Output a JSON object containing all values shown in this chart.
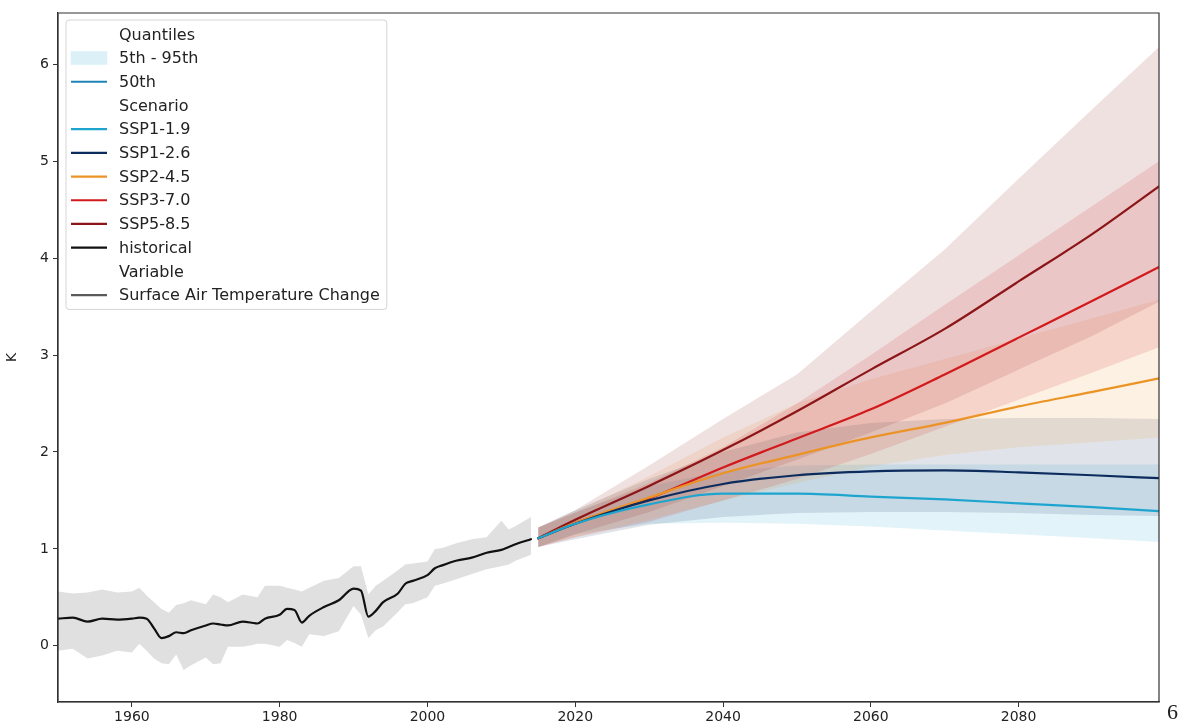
{
  "chart_data": {
    "type": "line",
    "ylabel": "K",
    "xlim": [
      1950,
      2099
    ],
    "xticks": [
      1960,
      1980,
      2000,
      2020,
      2040,
      2060,
      2080
    ],
    "ylim": [
      -0.58,
      6.53
    ],
    "yticks": [
      0,
      1,
      2,
      3,
      4,
      5,
      6
    ],
    "legend": "top left",
    "annotations": [
      "6"
    ],
    "series": [
      {
        "name": "Quantiles"
      },
      {
        "name": "5th - 95th",
        "type": "area",
        "color": "#dcf0f8"
      },
      {
        "name": "50th",
        "color": "#1f84b8"
      },
      {
        "name": "Scenario"
      },
      {
        "name": "SSP1-1.9",
        "color": "#1ea5cf",
        "x": [
          2015,
          2020,
          2030,
          2040,
          2050,
          2060,
          2070,
          2080,
          2090,
          2099
        ],
        "values": [
          1.11,
          1.26,
          1.46,
          1.57,
          1.57,
          1.54,
          1.51,
          1.47,
          1.43,
          1.39
        ],
        "lower": [
          1.02,
          1.15,
          1.26,
          1.27,
          1.26,
          1.23,
          1.19,
          1.15,
          1.11,
          1.07
        ],
        "upper": [
          1.22,
          1.38,
          1.65,
          1.8,
          1.86,
          1.87,
          1.87,
          1.87,
          1.87,
          1.87
        ]
      },
      {
        "name": "SSP1-2.6",
        "color": "#0d2c5e",
        "x": [
          2015,
          2020,
          2030,
          2040,
          2050,
          2060,
          2070,
          2080,
          2090,
          2099
        ],
        "values": [
          1.11,
          1.26,
          1.5,
          1.67,
          1.76,
          1.8,
          1.81,
          1.79,
          1.76,
          1.73
        ],
        "lower": [
          1.02,
          1.1,
          1.25,
          1.33,
          1.37,
          1.38,
          1.38,
          1.37,
          1.35,
          1.34
        ],
        "upper": [
          1.22,
          1.4,
          1.72,
          2.0,
          2.2,
          2.3,
          2.34,
          2.35,
          2.35,
          2.34
        ]
      },
      {
        "name": "SSP2-4.5",
        "color": "#ec9326",
        "x": [
          2015,
          2020,
          2030,
          2040,
          2050,
          2060,
          2070,
          2080,
          2090,
          2099
        ],
        "values": [
          1.11,
          1.27,
          1.53,
          1.78,
          1.97,
          2.15,
          2.3,
          2.47,
          2.62,
          2.76
        ],
        "lower": [
          1.02,
          1.12,
          1.3,
          1.5,
          1.68,
          1.85,
          1.97,
          2.05,
          2.1,
          2.15
        ],
        "upper": [
          1.22,
          1.38,
          1.75,
          2.15,
          2.5,
          2.75,
          2.96,
          3.17,
          3.38,
          3.57
        ]
      },
      {
        "name": "SSP3-7.0",
        "color": "#d2191c",
        "x": [
          2015,
          2020,
          2030,
          2040,
          2050,
          2060,
          2070,
          2080,
          2090,
          2099
        ],
        "values": [
          1.11,
          1.27,
          1.52,
          1.84,
          2.14,
          2.44,
          2.8,
          3.18,
          3.56,
          3.91
        ],
        "lower": [
          1.02,
          1.12,
          1.28,
          1.5,
          1.72,
          1.98,
          2.26,
          2.54,
          2.82,
          3.08
        ],
        "upper": [
          1.22,
          1.37,
          1.68,
          2.05,
          2.5,
          3.0,
          3.52,
          4.03,
          4.54,
          5.0
        ]
      },
      {
        "name": "SSP5-8.5",
        "color": "#8c1517",
        "x": [
          2015,
          2020,
          2030,
          2040,
          2050,
          2060,
          2070,
          2080,
          2090,
          2099
        ],
        "values": [
          1.11,
          1.3,
          1.65,
          2.02,
          2.42,
          2.85,
          3.27,
          3.76,
          4.25,
          4.74
        ],
        "lower": [
          1.02,
          1.15,
          1.38,
          1.65,
          1.92,
          2.2,
          2.5,
          2.85,
          3.2,
          3.55
        ],
        "upper": [
          1.22,
          1.4,
          1.86,
          2.34,
          2.8,
          3.45,
          4.09,
          4.82,
          5.54,
          6.18
        ]
      },
      {
        "name": "historical",
        "color": "#111111",
        "x": [
          1950,
          1952,
          1954,
          1956,
          1958,
          1960,
          1961,
          1962,
          1963,
          1964,
          1965,
          1966,
          1967,
          1968,
          1970,
          1971,
          1972,
          1973,
          1975,
          1977,
          1978,
          1980,
          1981,
          1982,
          1983,
          1984,
          1986,
          1988,
          1990,
          1991,
          1992,
          1993,
          1994,
          1996,
          1997,
          1998,
          2000,
          2001,
          2002,
          2004,
          2006,
          2008,
          2010,
          2011,
          2012,
          2014
        ],
        "values": [
          0.28,
          0.29,
          0.25,
          0.28,
          0.27,
          0.28,
          0.29,
          0.28,
          0.18,
          0.08,
          0.1,
          0.14,
          0.13,
          0.16,
          0.21,
          0.23,
          0.22,
          0.21,
          0.25,
          0.23,
          0.28,
          0.32,
          0.38,
          0.37,
          0.24,
          0.31,
          0.4,
          0.47,
          0.59,
          0.57,
          0.3,
          0.36,
          0.45,
          0.54,
          0.64,
          0.67,
          0.73,
          0.8,
          0.83,
          0.88,
          0.91,
          0.96,
          0.99,
          1.02,
          1.05,
          1.1
        ],
        "lower": [
          -0.05,
          -0.03,
          -0.13,
          -0.1,
          -0.05,
          -0.07,
          0.02,
          -0.05,
          -0.13,
          -0.18,
          -0.19,
          -0.09,
          -0.25,
          -0.2,
          -0.12,
          -0.19,
          -0.18,
          -0.01,
          -0.01,
          0.02,
          0.02,
          -0.01,
          0.06,
          0.03,
          -0.01,
          0.12,
          0.1,
          0.15,
          0.41,
          0.32,
          0.08,
          0.16,
          0.2,
          0.35,
          0.43,
          0.44,
          0.5,
          0.62,
          0.64,
          0.69,
          0.74,
          0.79,
          0.82,
          0.84,
          0.88,
          0.94
        ],
        "upper": [
          0.56,
          0.54,
          0.55,
          0.58,
          0.55,
          0.56,
          0.6,
          0.52,
          0.45,
          0.38,
          0.34,
          0.42,
          0.44,
          0.47,
          0.43,
          0.53,
          0.5,
          0.45,
          0.53,
          0.5,
          0.62,
          0.62,
          0.6,
          0.58,
          0.56,
          0.6,
          0.67,
          0.7,
          0.82,
          0.82,
          0.53,
          0.62,
          0.67,
          0.78,
          0.84,
          0.85,
          0.87,
          1.0,
          1.01,
          1.06,
          1.1,
          1.12,
          1.29,
          1.2,
          1.24,
          1.33
        ]
      },
      {
        "name": "Variable"
      },
      {
        "name": "Surface Air Temperature Change",
        "color": "#5a5a5a"
      }
    ]
  }
}
